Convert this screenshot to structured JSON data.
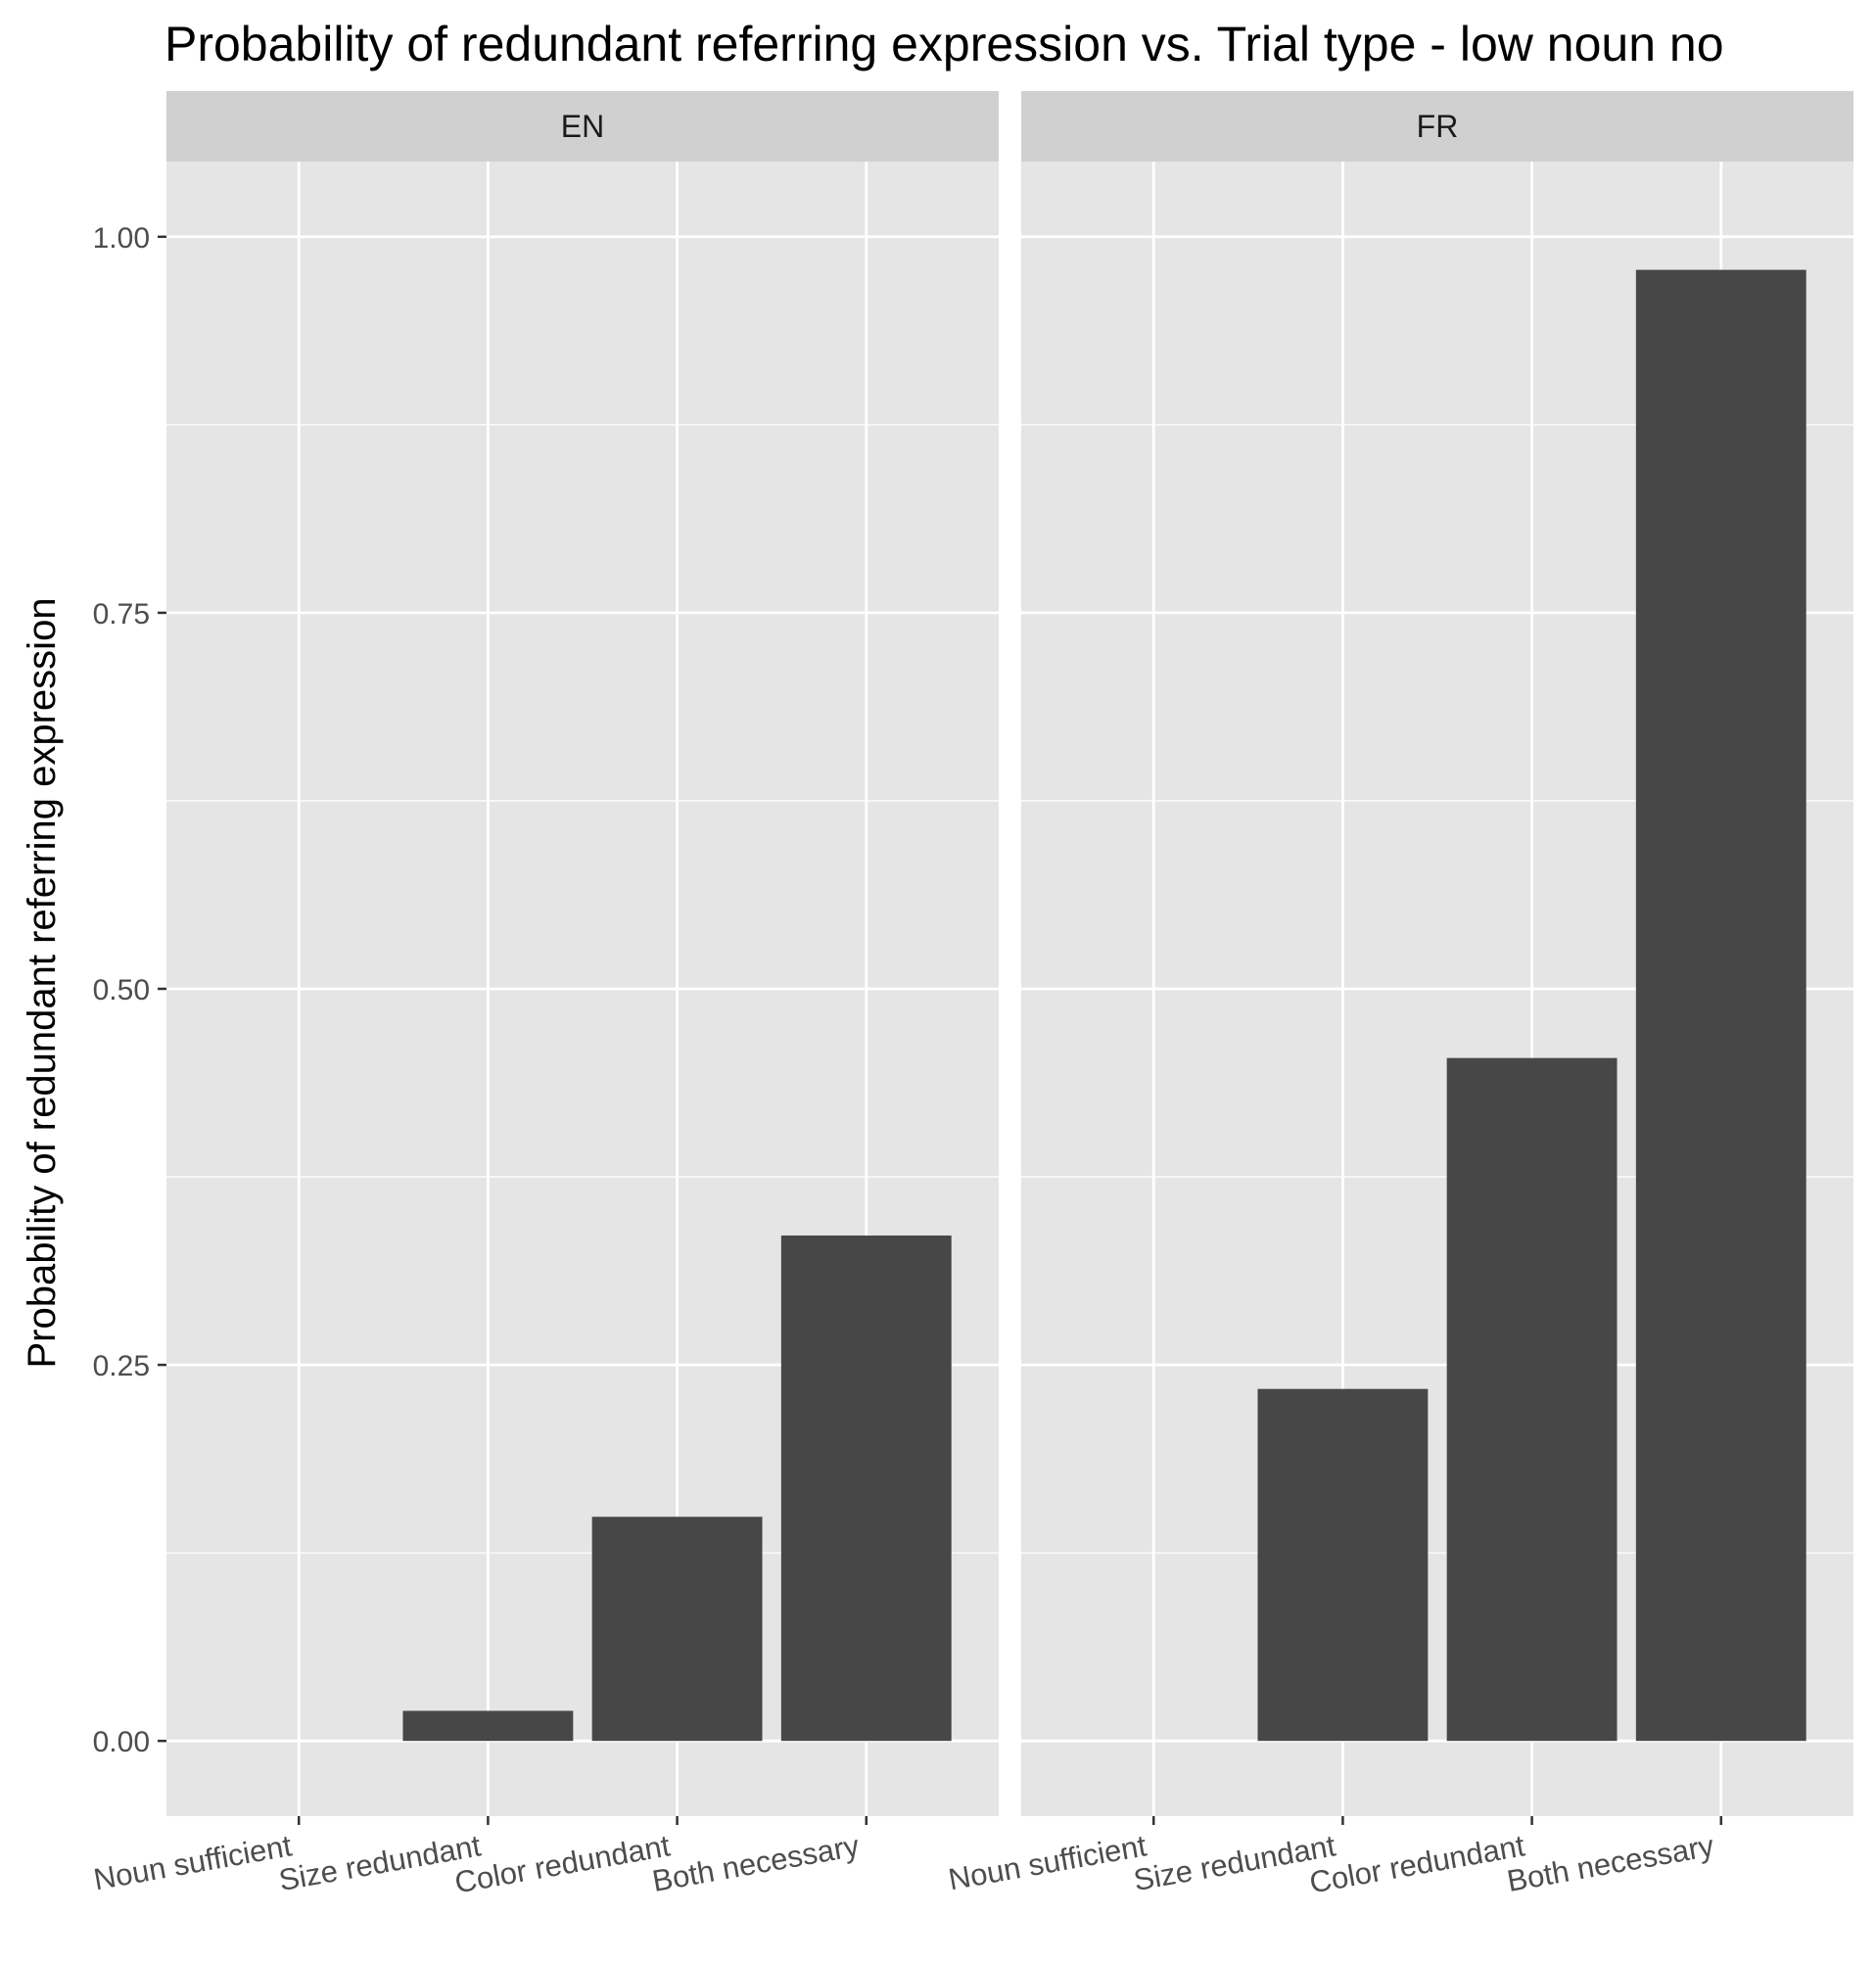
{
  "chart_data": {
    "type": "bar",
    "title": "Probability of redundant referring expression vs. Trial type - low noun no",
    "xlabel": "",
    "ylabel": "Probability of redundant referring expression",
    "ylim": [
      -0.05,
      1.05
    ],
    "yticks": [
      "0.00",
      "0.25",
      "0.50",
      "0.75",
      "1.00"
    ],
    "ytick_values": [
      0,
      0.25,
      0.5,
      0.75,
      1.0
    ],
    "categories": [
      "Noun sufficient",
      "Size redundant",
      "Color redundant",
      "Both necessary"
    ],
    "grid": true,
    "facets": [
      {
        "label": "EN",
        "values": [
          0.0,
          0.02,
          0.149,
          0.336
        ]
      },
      {
        "label": "FR",
        "values": [
          0.0,
          0.234,
          0.454,
          0.978
        ]
      }
    ]
  },
  "colors": {
    "panel_background": "#e5e5e5",
    "strip_background": "#d0d0d0",
    "grid": "#ffffff",
    "bar_fill": "#474747",
    "tick_text": "#4d4d4d"
  }
}
